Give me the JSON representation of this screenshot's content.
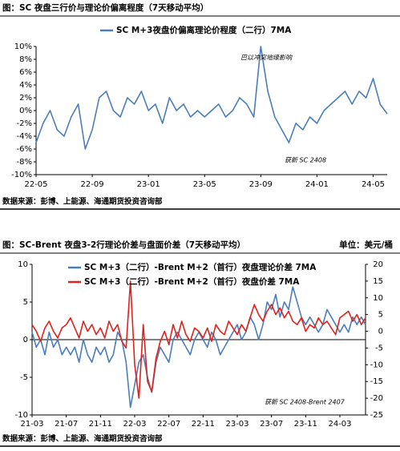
{
  "chart_data": [
    {
      "type": "line",
      "title": "图：SC 夜盘三行价与理论价偏离程度（7天移动平均）",
      "source": "数据来源：彭博、上能源、海通期货投资咨询部",
      "annotations": [
        "巴以冲突地缘影响",
        "获新 SC 2408"
      ],
      "categories": [
        "22-05",
        null,
        null,
        null,
        null,
        null,
        null,
        null,
        "22-09",
        null,
        null,
        null,
        null,
        null,
        null,
        null,
        "23-01",
        null,
        null,
        null,
        null,
        null,
        null,
        null,
        "23-05",
        null,
        null,
        null,
        null,
        null,
        null,
        null,
        "23-09",
        null,
        null,
        null,
        null,
        null,
        null,
        null,
        "24-01",
        null,
        null,
        null,
        null,
        null,
        null,
        null,
        "24-05",
        null,
        null
      ],
      "series": [
        {
          "name": "SC M+3夜盘价偏离理论价程度（二行）7MA",
          "color": "#4a7ebb",
          "values": [
            -5,
            -2,
            0,
            -3,
            -4,
            -1,
            1,
            -6,
            -3,
            2,
            3,
            0,
            -1,
            2,
            1,
            3,
            0,
            1,
            -2,
            2,
            0,
            1,
            -1,
            0,
            -1,
            0,
            1,
            -1,
            0,
            2,
            1,
            -1,
            10,
            3,
            -1,
            -3,
            -5,
            -2,
            -3,
            -1,
            -2,
            0,
            1,
            2,
            3,
            1,
            3,
            2,
            5,
            1,
            -0.5
          ]
        }
      ],
      "ylim": [
        -10,
        10
      ],
      "yticks": [
        {
          "value": -10,
          "label": "-10%"
        },
        {
          "value": -8,
          "label": "-8%"
        },
        {
          "value": -6,
          "label": "-6%"
        },
        {
          "value": -4,
          "label": "-4%"
        },
        {
          "value": -2,
          "label": "-2%"
        },
        {
          "value": 0,
          "label": "0%"
        },
        {
          "value": 2,
          "label": "2%"
        },
        {
          "value": 4,
          "label": "4%"
        },
        {
          "value": 6,
          "label": "6%"
        },
        {
          "value": 8,
          "label": "8%"
        },
        {
          "value": 10,
          "label": "10%"
        }
      ]
    },
    {
      "type": "line",
      "title": "图：SC-Brent 夜盘3-2行理论价差与盘面价差（7天移动平均）",
      "unit": "单位：美元/桶",
      "source": "数据来源：彭博、上能源、海通期货投资咨询部",
      "annotations": [
        "获新 SC 2408-Brent 2407"
      ],
      "categories": [
        "21-03",
        null,
        null,
        null,
        null,
        null,
        null,
        null,
        "21-07",
        null,
        null,
        null,
        null,
        null,
        null,
        null,
        "21-11",
        null,
        null,
        null,
        null,
        null,
        null,
        null,
        "22-03",
        null,
        null,
        null,
        null,
        null,
        null,
        null,
        "22-07",
        null,
        null,
        null,
        null,
        null,
        null,
        null,
        "22-11",
        null,
        null,
        null,
        null,
        null,
        null,
        null,
        "23-03",
        null,
        null,
        null,
        null,
        null,
        null,
        null,
        "23-07",
        null,
        null,
        null,
        null,
        null,
        null,
        null,
        "23-11",
        null,
        null,
        null,
        null,
        null,
        null,
        null,
        "24-03",
        null,
        null,
        null,
        null,
        null,
        null
      ],
      "series": [
        {
          "name": "SC M+3（二行）-Brent M+2（首行）夜盘理论价差 7MA",
          "color": "#4a7ebb",
          "values": [
            1,
            -1,
            0,
            -2,
            1,
            -1,
            0,
            -2,
            -1,
            -2,
            -1,
            -3,
            0,
            -2,
            -3,
            -1,
            -2,
            -1,
            -3,
            -2,
            1,
            0,
            -3,
            -9,
            -6,
            -3,
            -2,
            -5,
            -7,
            -3,
            -1,
            -2,
            -3,
            0,
            1,
            0,
            -1,
            -2,
            0,
            1,
            0,
            -1,
            1,
            0,
            -2,
            -1,
            0,
            1,
            2,
            0,
            1,
            3,
            2,
            0,
            2,
            5,
            4,
            6,
            3,
            5,
            4,
            7,
            5,
            3,
            2,
            3,
            2,
            1,
            2,
            4,
            3,
            2,
            1,
            2,
            1,
            3,
            2,
            3,
            2
          ]
        },
        {
          "name": "SC M+3（二行）-Brent M+2（首行）夜盘价差 7MA",
          "color": "#e3201b",
          "axis": "y2",
          "values": [
            2,
            0,
            -3,
            1,
            3,
            0,
            -2,
            1,
            2,
            4,
            1,
            -2,
            3,
            0,
            2,
            -1,
            1,
            -2,
            3,
            0,
            2,
            -3,
            -5,
            15,
            -10,
            -20,
            2,
            -15,
            -18,
            -8,
            -3,
            0,
            -4,
            2,
            -2,
            3,
            -1,
            -3,
            1,
            0,
            -2,
            1,
            -3,
            2,
            0,
            -1,
            3,
            1,
            -1,
            2,
            0,
            4,
            8,
            5,
            3,
            6,
            8,
            5,
            7,
            4,
            6,
            3,
            2,
            4,
            0,
            2,
            1,
            4,
            2,
            3,
            1,
            -1,
            4,
            5,
            6,
            3,
            5,
            2,
            4
          ]
        }
      ],
      "ylim": [
        -10,
        10
      ],
      "yticks": [
        -10,
        -5,
        0,
        5,
        10
      ],
      "y2lim": [
        -25,
        20
      ],
      "y2ticks": [
        -25,
        -20,
        -15,
        -10,
        -5,
        0,
        5,
        10,
        15,
        20
      ]
    }
  ]
}
